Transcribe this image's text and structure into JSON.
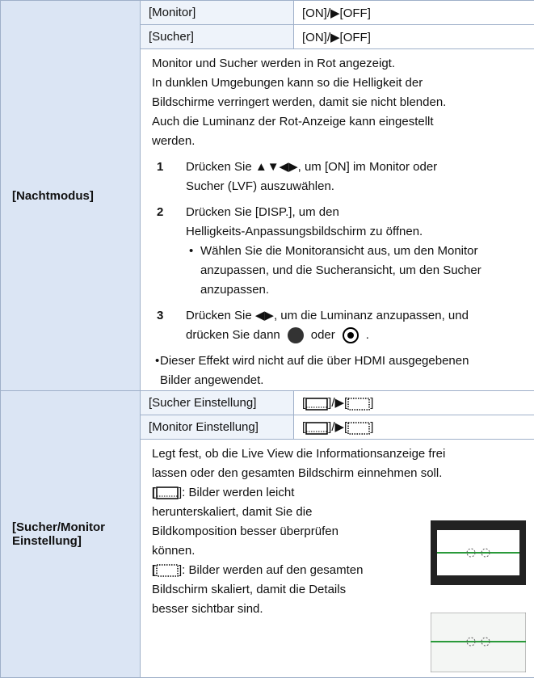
{
  "sections": [
    {
      "label": "[Nachtmodus]",
      "settings": [
        {
          "name": "[Monitor]",
          "value": "[ON]/▶[OFF]"
        },
        {
          "name": "[Sucher]",
          "value": "[ON]/▶[OFF]"
        }
      ],
      "intro": [
        "Monitor und Sucher werden in Rot angezeigt.",
        "In dunklen Umgebungen kann so die Helligkeit der",
        "Bildschirme verringert werden, damit sie nicht blenden.",
        "Auch die Luminanz der Rot-Anzeige kann eingestellt",
        "werden."
      ],
      "steps": [
        {
          "number": "1",
          "lines": [
            "Drücken Sie ▲▼◀▶, um [ON] im Monitor oder",
            "Sucher (LVF) auszuwählen."
          ]
        },
        {
          "number": "2",
          "lines": [
            "Drücken Sie [DISP.], um den",
            "Helligkeits-Anpassungsbildschirm zu öffnen."
          ],
          "bullet": [
            "Wählen Sie die Monitoransicht aus, um den Monitor",
            "anzupassen, und die Sucheransicht, um den Sucher",
            "anzupassen."
          ]
        },
        {
          "number": "3",
          "lines": [
            "Drücken Sie ◀▶, um die Luminanz anzupassen, und"
          ],
          "last_parts": [
            "drücken Sie dann",
            "oder",
            "."
          ]
        }
      ],
      "note": [
        "Dieser Effekt wird nicht auf die über HDMI ausgegebenen",
        "Bilder angewendet."
      ]
    },
    {
      "label": "[Sucher/Monitor Einstellung]",
      "settings": [
        {
          "name": "[Sucher Einstellung]",
          "value_parts": [
            "[",
            "]/▶[",
            "]"
          ]
        },
        {
          "name": "[Monitor Einstellung]",
          "value_parts": [
            "[",
            "]/▶[",
            "]"
          ]
        }
      ],
      "intro": [
        "Legt fest, ob die Live View die Informationsanzeige frei",
        "lassen oder den gesamten Bildschirm einnehmen soll."
      ],
      "options": [
        {
          "open": "[",
          "lines": [
            "]: Bilder werden leicht",
            "herunterskaliert, damit Sie die",
            "Bildkomposition besser überprüfen",
            "können."
          ]
        },
        {
          "open": "[",
          "lines": [
            "]: Bilder werden auf den gesamten",
            "Bildschirm skaliert, damit die Details",
            "besser sichtbar sind."
          ]
        }
      ]
    }
  ]
}
